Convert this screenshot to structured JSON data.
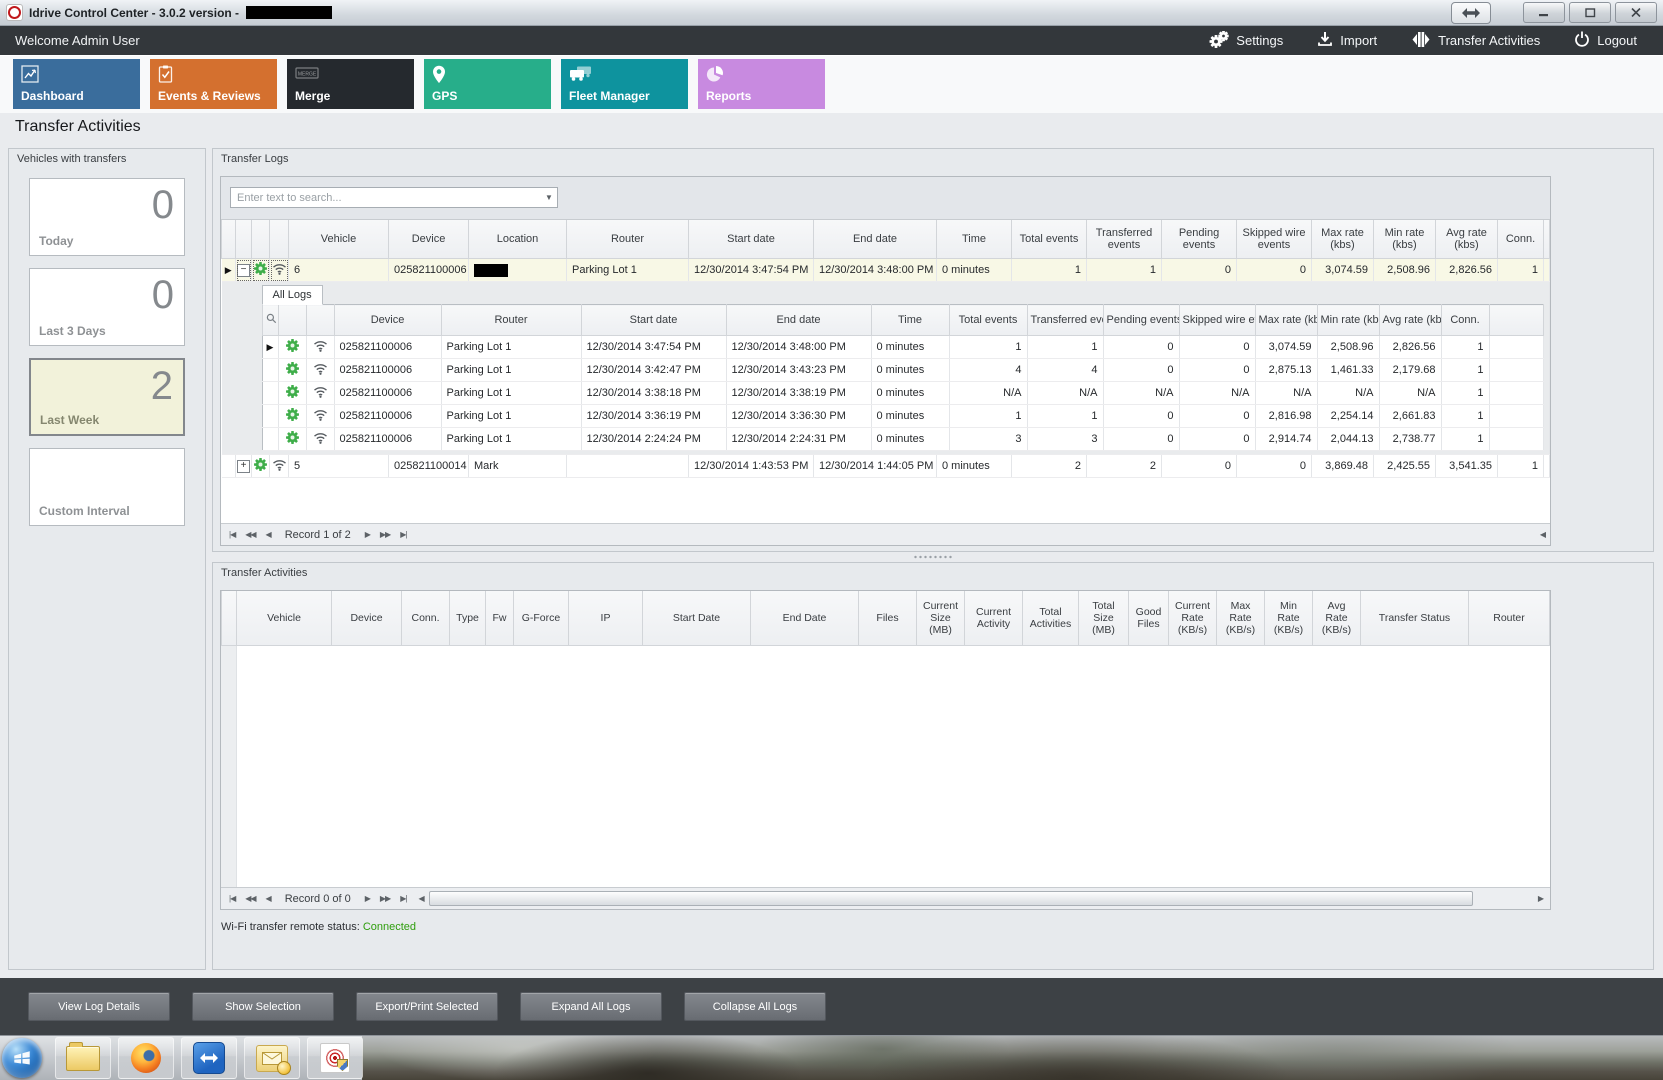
{
  "titlebar": {
    "title": "Idrive Control Center - 3.0.2 version -"
  },
  "navbar": {
    "welcome": "Welcome Admin User",
    "actions": [
      {
        "label": "Settings",
        "icon": "gears-icon"
      },
      {
        "label": "Import",
        "icon": "import-icon"
      },
      {
        "label": "Transfer Activities",
        "icon": "transfer-arrows-icon"
      },
      {
        "label": "Logout",
        "icon": "power-icon"
      }
    ]
  },
  "tabs": [
    {
      "label": "Dashboard",
      "color": "#3a6d9c",
      "icon": "line-chart-icon"
    },
    {
      "label": "Events & Reviews",
      "color": "#d4702f",
      "icon": "clipboard-check-icon"
    },
    {
      "label": "Merge",
      "color": "#25292e",
      "icon": "merge-sign-icon"
    },
    {
      "label": "GPS",
      "color": "#27ae8a",
      "icon": "map-pin-icon"
    },
    {
      "label": "Fleet Manager",
      "color": "#0e939e",
      "icon": "trucks-icon"
    },
    {
      "label": "Reports",
      "color": "#c88ae0",
      "icon": "pie-chart-icon"
    }
  ],
  "page_title": "Transfer Activities",
  "vehicles_panel": {
    "title": "Vehicles with transfers",
    "cards": [
      {
        "label": "Today",
        "value": "0",
        "selected": false
      },
      {
        "label": "Last 3 Days",
        "value": "0",
        "selected": false
      },
      {
        "label": "Last Week",
        "value": "2",
        "selected": true
      },
      {
        "label": "Custom Interval",
        "value": "",
        "selected": false
      }
    ]
  },
  "transfer_logs": {
    "title": "Transfer Logs",
    "search_placeholder": "Enter text to search...",
    "columns": [
      "Vehicle",
      "Device",
      "Location",
      "Router",
      "Start date",
      "End date",
      "Time",
      "Total events",
      "Transferred events",
      "Pending events",
      "Skipped wire events",
      "Max rate (kbs)",
      "Min rate (kbs)",
      "Avg rate (kbs)",
      "Conn."
    ],
    "rows": [
      {
        "expanded": true,
        "selected": true,
        "redacted_location": true,
        "cells": [
          "6",
          "025821100006",
          "",
          "Parking Lot 1",
          "12/30/2014 3:47:54 PM",
          "12/30/2014 3:48:00 PM",
          "0 minutes",
          "1",
          "1",
          "0",
          "0",
          "3,074.59",
          "2,508.96",
          "2,826.56",
          "1"
        ]
      },
      {
        "expanded": false,
        "selected": false,
        "redacted_location": false,
        "cells": [
          "5",
          "025821100014",
          "Mark",
          "",
          "12/30/2014 1:43:53 PM",
          "12/30/2014 1:44:05 PM",
          "0 minutes",
          "2",
          "2",
          "0",
          "0",
          "3,869.48",
          "2,425.55",
          "3,541.35",
          "1"
        ]
      }
    ],
    "detail": {
      "tab": "All Logs",
      "columns": [
        "Device",
        "Router",
        "Start date",
        "End date",
        "Time",
        "Total events",
        "Transferred events",
        "Pending events",
        "Skipped wire events",
        "Max rate (kbs)",
        "Min rate (kbs)",
        "Avg rate (kbs)",
        "Conn."
      ],
      "rows": [
        [
          "025821100006",
          "Parking Lot 1",
          "12/30/2014 3:47:54 PM",
          "12/30/2014 3:48:00 PM",
          "0 minutes",
          "1",
          "1",
          "0",
          "0",
          "3,074.59",
          "2,508.96",
          "2,826.56",
          "1"
        ],
        [
          "025821100006",
          "Parking Lot 1",
          "12/30/2014 3:42:47 PM",
          "12/30/2014 3:43:23 PM",
          "0 minutes",
          "4",
          "4",
          "0",
          "0",
          "2,875.13",
          "1,461.33",
          "2,179.68",
          "1"
        ],
        [
          "025821100006",
          "Parking Lot 1",
          "12/30/2014 3:38:18 PM",
          "12/30/2014 3:38:19 PM",
          "0 minutes",
          "N/A",
          "N/A",
          "N/A",
          "N/A",
          "N/A",
          "N/A",
          "N/A",
          "1"
        ],
        [
          "025821100006",
          "Parking Lot 1",
          "12/30/2014 3:36:19 PM",
          "12/30/2014 3:36:30 PM",
          "0 minutes",
          "1",
          "1",
          "0",
          "0",
          "2,816.98",
          "2,254.14",
          "2,661.83",
          "1"
        ],
        [
          "025821100006",
          "Parking Lot 1",
          "12/30/2014 2:24:24 PM",
          "12/30/2014 2:24:31 PM",
          "0 minutes",
          "3",
          "3",
          "0",
          "0",
          "2,914.74",
          "2,044.13",
          "2,738.77",
          "1"
        ]
      ]
    },
    "pagination": "Record 1 of 2"
  },
  "transfer_activities": {
    "title": "Transfer Activities",
    "columns": [
      "Vehicle",
      "Device",
      "Conn.",
      "Type",
      "Fw",
      "G-Force",
      "IP",
      "Start Date",
      "End Date",
      "Files",
      "Current Size (MB)",
      "Current Activity",
      "Total Activities",
      "Total Size (MB)",
      "Good Files",
      "Current Rate (KB/s)",
      "Max Rate (KB/s)",
      "Min Rate (KB/s)",
      "Avg Rate (KB/s)",
      "Transfer Status",
      "Router"
    ],
    "pagination": "Record 0 of 0",
    "status_label": "Wi-Fi transfer remote status:",
    "status_value": "Connected",
    "status_color": "#2f9e0d"
  },
  "footer_buttons": [
    "View Log Details",
    "Show Selection",
    "Export/Print Selected",
    "Expand All Logs",
    "Collapse All Logs"
  ],
  "taskbar_icons": [
    "start-orb-icon",
    "explorer-folder-icon",
    "firefox-icon",
    "teamviewer-icon",
    "outlook-icon",
    "idrive-target-icon"
  ],
  "pager_glyphs": {
    "first": "|◀",
    "fast_prev": "◀◀",
    "prev": "◀",
    "next": "▶",
    "fast_next": "▶▶",
    "last": "▶|"
  }
}
